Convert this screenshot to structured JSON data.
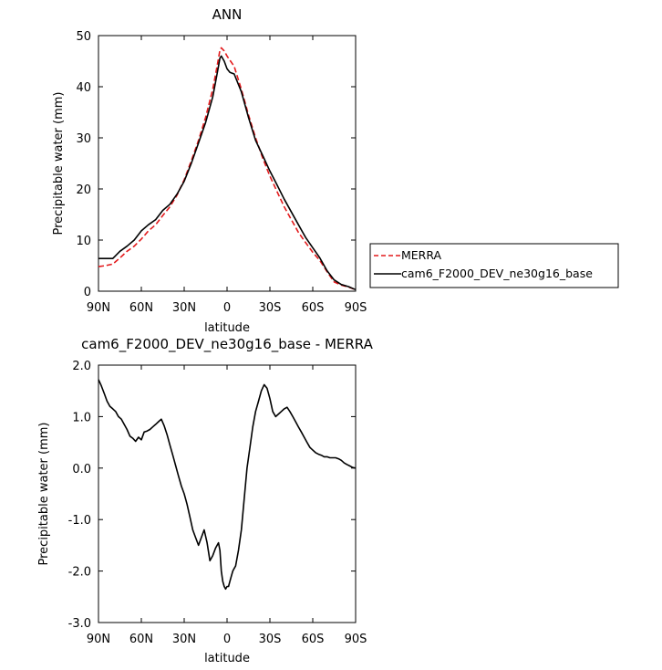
{
  "chart_data": [
    {
      "type": "line",
      "title": "ANN",
      "xlabel": "latitude",
      "ylabel": "Precipitable water (mm)",
      "xlim": [
        90,
        -90
      ],
      "ylim": [
        0,
        50
      ],
      "x_ticks": [
        90,
        60,
        30,
        0,
        -30,
        -60,
        -90
      ],
      "x_tick_labels": [
        "90N",
        "60N",
        "30N",
        "0",
        "30S",
        "60S",
        "90S"
      ],
      "y_ticks": [
        0,
        10,
        20,
        30,
        40,
        50
      ],
      "y_tick_labels": [
        "0",
        "10",
        "20",
        "30",
        "40",
        "50"
      ],
      "grid": false,
      "legend_position": "right, outside plot",
      "series": [
        {
          "name": "MERRA",
          "color": "#e31a1c",
          "dash": "dashed",
          "x": [
            90,
            85,
            80,
            75,
            70,
            65,
            60,
            55,
            50,
            45,
            40,
            35,
            30,
            25,
            20,
            15,
            10,
            8,
            6,
            5,
            4,
            2,
            0,
            -2,
            -5,
            -10,
            -15,
            -20,
            -25,
            -30,
            -35,
            -40,
            -45,
            -50,
            -55,
            -60,
            -65,
            -70,
            -75,
            -80,
            -85,
            -90
          ],
          "values": [
            4.8,
            5.0,
            5.3,
            6.5,
            7.8,
            8.8,
            10.2,
            11.8,
            13.0,
            14.8,
            16.5,
            18.8,
            21.8,
            25.5,
            29.5,
            34.0,
            39.5,
            42.5,
            45.5,
            47.2,
            47.6,
            47.0,
            46.0,
            45.2,
            44.0,
            39.5,
            34.5,
            30.0,
            26.0,
            22.5,
            19.5,
            16.5,
            14.0,
            11.5,
            9.5,
            7.6,
            6.0,
            3.8,
            1.8,
            1.2,
            0.8,
            0.3
          ]
        },
        {
          "name": "cam6_F2000_DEV_ne30g16_base",
          "color": "#000000",
          "dash": "solid",
          "x": [
            90,
            85,
            80,
            75,
            70,
            65,
            60,
            55,
            50,
            45,
            40,
            35,
            30,
            25,
            20,
            15,
            10,
            8,
            6,
            5,
            4,
            2,
            0,
            -2,
            -5,
            -10,
            -15,
            -20,
            -25,
            -30,
            -35,
            -40,
            -45,
            -50,
            -55,
            -60,
            -65,
            -70,
            -75,
            -80,
            -85,
            -90
          ],
          "values": [
            6.4,
            6.4,
            6.4,
            7.8,
            8.8,
            10.0,
            11.8,
            13.0,
            14.0,
            15.8,
            17.0,
            19.0,
            21.5,
            25.0,
            29.0,
            33.0,
            38.0,
            41.0,
            44.0,
            45.6,
            46.0,
            45.0,
            43.5,
            42.8,
            42.5,
            39.0,
            34.0,
            29.5,
            26.5,
            23.5,
            20.8,
            18.0,
            15.5,
            13.0,
            10.5,
            8.5,
            6.5,
            4.0,
            2.2,
            1.3,
            0.9,
            0.3
          ]
        }
      ]
    },
    {
      "type": "line",
      "title": "cam6_F2000_DEV_ne30g16_base - MERRA",
      "xlabel": "latitude",
      "ylabel": "Precipitable water (mm)",
      "xlim": [
        90,
        -90
      ],
      "ylim": [
        -3.0,
        2.0
      ],
      "x_ticks": [
        90,
        60,
        30,
        0,
        -30,
        -60,
        -90
      ],
      "x_tick_labels": [
        "90N",
        "60N",
        "30N",
        "0",
        "30S",
        "60S",
        "90S"
      ],
      "y_ticks": [
        -3,
        -2,
        -1,
        0,
        1,
        2
      ],
      "y_tick_labels": [
        "-3.0",
        "-2.0",
        "-1.0",
        "0.0",
        "1.0",
        "2.0"
      ],
      "grid": false,
      "series": [
        {
          "color": "#000000",
          "x": [
            90,
            88,
            86,
            84,
            82,
            80,
            78,
            76,
            74,
            72,
            70,
            68,
            66,
            64,
            62,
            60,
            58,
            56,
            54,
            52,
            50,
            48,
            46,
            44,
            42,
            40,
            38,
            36,
            34,
            32,
            30,
            28,
            26,
            24,
            22,
            20,
            18,
            16,
            14,
            12,
            10,
            8,
            6,
            5,
            4,
            3,
            2,
            1,
            0,
            -1,
            -2,
            -3,
            -4,
            -5,
            -6,
            -8,
            -10,
            -12,
            -14,
            -16,
            -18,
            -20,
            -22,
            -24,
            -26,
            -28,
            -30,
            -32,
            -34,
            -36,
            -38,
            -40,
            -42,
            -44,
            -46,
            -48,
            -50,
            -52,
            -54,
            -56,
            -58,
            -60,
            -62,
            -64,
            -66,
            -68,
            -70,
            -72,
            -74,
            -76,
            -78,
            -80,
            -82,
            -84,
            -86,
            -88,
            -90
          ],
          "values": [
            1.72,
            1.6,
            1.45,
            1.3,
            1.2,
            1.15,
            1.1,
            1.0,
            0.95,
            0.85,
            0.75,
            0.62,
            0.58,
            0.52,
            0.6,
            0.55,
            0.7,
            0.72,
            0.75,
            0.8,
            0.85,
            0.9,
            0.95,
            0.82,
            0.65,
            0.45,
            0.25,
            0.05,
            -0.15,
            -0.35,
            -0.5,
            -0.7,
            -0.95,
            -1.2,
            -1.35,
            -1.5,
            -1.35,
            -1.2,
            -1.45,
            -1.8,
            -1.7,
            -1.55,
            -1.45,
            -1.6,
            -2.0,
            -2.2,
            -2.3,
            -2.35,
            -2.3,
            -2.3,
            -2.2,
            -2.1,
            -2.0,
            -1.95,
            -1.9,
            -1.6,
            -1.2,
            -0.6,
            0.0,
            0.4,
            0.8,
            1.1,
            1.3,
            1.5,
            1.62,
            1.55,
            1.35,
            1.1,
            1.0,
            1.05,
            1.1,
            1.15,
            1.18,
            1.1,
            1.0,
            0.9,
            0.8,
            0.7,
            0.6,
            0.5,
            0.4,
            0.35,
            0.3,
            0.27,
            0.25,
            0.22,
            0.22,
            0.2,
            0.2,
            0.2,
            0.18,
            0.15,
            0.1,
            0.07,
            0.04,
            0.01,
            0.0
          ]
        }
      ]
    }
  ]
}
